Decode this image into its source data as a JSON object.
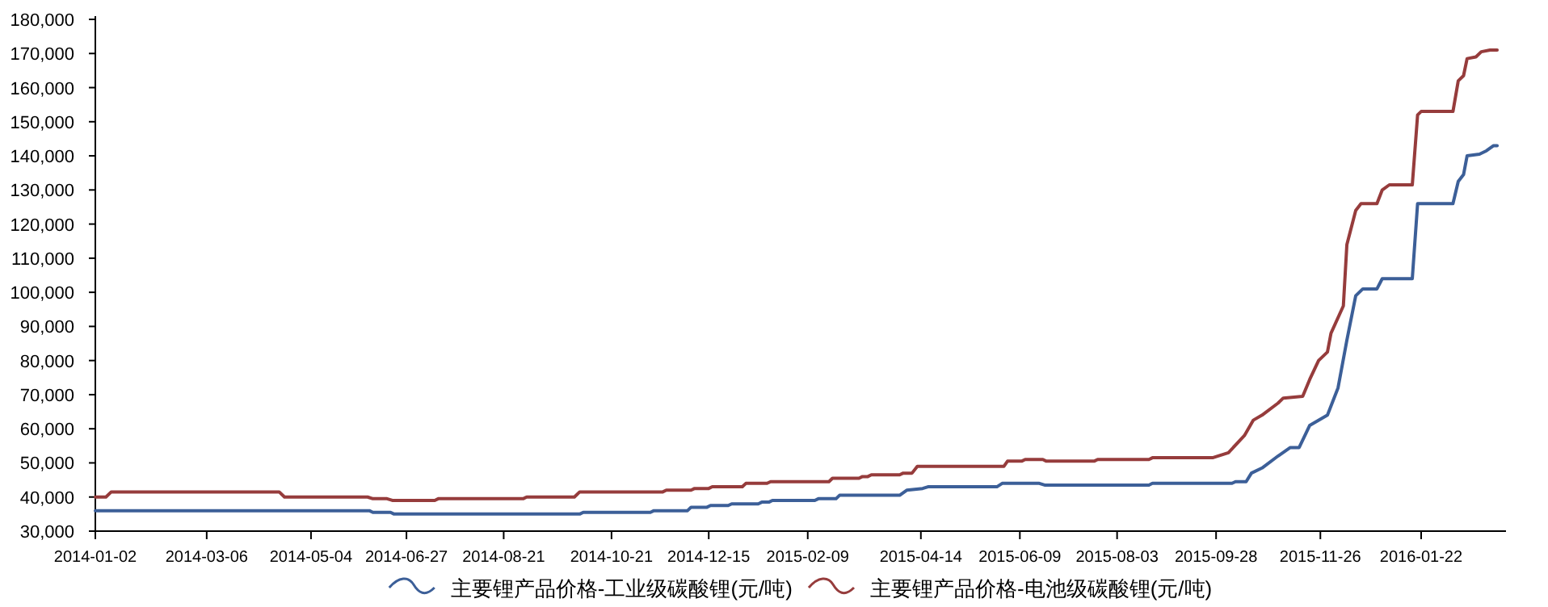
{
  "chart_data": {
    "type": "line",
    "legend": "bottom",
    "xlim": [
      "2014-01-02",
      "2016-03-10"
    ],
    "ylim": [
      30000,
      180000
    ],
    "xticks": [
      {
        "value": "2014-01-02",
        "label": "2014-01-02"
      },
      {
        "value": "2014-03-06",
        "label": "2014-03-06"
      },
      {
        "value": "2014-05-04",
        "label": "2014-05-04"
      },
      {
        "value": "2014-06-27",
        "label": "2014-06-27"
      },
      {
        "value": "2014-08-21",
        "label": "2014-08-21"
      },
      {
        "value": "2014-10-21",
        "label": "2014-10-21"
      },
      {
        "value": "2014-12-15",
        "label": "2014-12-15"
      },
      {
        "value": "2015-02-09",
        "label": "2015-02-09"
      },
      {
        "value": "2015-04-14",
        "label": "2015-04-14"
      },
      {
        "value": "2015-06-09",
        "label": "2015-06-09"
      },
      {
        "value": "2015-08-03",
        "label": "2015-08-03"
      },
      {
        "value": "2015-09-28",
        "label": "2015-09-28"
      },
      {
        "value": "2015-11-26",
        "label": "2015-11-26"
      },
      {
        "value": "2016-01-22",
        "label": "2016-01-22"
      }
    ],
    "yticks": [
      {
        "value": 30000,
        "label": "30,000"
      },
      {
        "value": 40000,
        "label": "40,000"
      },
      {
        "value": 50000,
        "label": "50,000"
      },
      {
        "value": 60000,
        "label": "60,000"
      },
      {
        "value": 70000,
        "label": "70,000"
      },
      {
        "value": 80000,
        "label": "80,000"
      },
      {
        "value": 90000,
        "label": "90,000"
      },
      {
        "value": 100000,
        "label": "100,000"
      },
      {
        "value": 110000,
        "label": "110,000"
      },
      {
        "value": 120000,
        "label": "120,000"
      },
      {
        "value": 130000,
        "label": "130,000"
      },
      {
        "value": 140000,
        "label": "140,000"
      },
      {
        "value": 150000,
        "label": "150,000"
      },
      {
        "value": 160000,
        "label": "160,000"
      },
      {
        "value": 170000,
        "label": "170,000"
      },
      {
        "value": 180000,
        "label": "180,000"
      }
    ],
    "series": [
      {
        "name": "主要锂产品价格-工业级碳酸锂(元/吨)",
        "color": "#3c5f98",
        "x": [
          "2014-01-02",
          "2014-06-06",
          "2014-06-08",
          "2014-06-18",
          "2014-06-20",
          "2014-10-03",
          "2014-10-05",
          "2014-11-12",
          "2014-11-14",
          "2014-12-03",
          "2014-12-05",
          "2014-12-14",
          "2014-12-16",
          "2014-12-26",
          "2014-12-28",
          "2015-01-12",
          "2015-01-14",
          "2015-01-18",
          "2015-01-20",
          "2015-02-13",
          "2015-02-15",
          "2015-02-25",
          "2015-02-27",
          "2015-04-02",
          "2015-04-06",
          "2015-04-15",
          "2015-04-18",
          "2015-05-27",
          "2015-05-30",
          "2015-06-20",
          "2015-06-23",
          "2015-08-21",
          "2015-08-23",
          "2015-10-07",
          "2015-10-09",
          "2015-10-15",
          "2015-10-18",
          "2015-10-24",
          "2015-11-02",
          "2015-11-09",
          "2015-11-14",
          "2015-11-20",
          "2015-11-30",
          "2015-12-06",
          "2015-12-11",
          "2015-12-16",
          "2015-12-20",
          "2015-12-28",
          "2015-12-31",
          "2016-01-17",
          "2016-01-20",
          "2016-02-09",
          "2016-02-12",
          "2016-02-15",
          "2016-02-17",
          "2016-02-24",
          "2016-02-28",
          "2016-03-03",
          "2016-03-05"
        ],
        "values": [
          36000,
          36000,
          35500,
          35500,
          35000,
          35000,
          35500,
          35500,
          36000,
          36000,
          37000,
          37000,
          37500,
          37500,
          38000,
          38000,
          38500,
          38500,
          39000,
          39000,
          39500,
          39500,
          40500,
          40500,
          42000,
          42500,
          43000,
          43000,
          44000,
          44000,
          43500,
          43500,
          44000,
          44000,
          44500,
          44500,
          47000,
          48500,
          52000,
          54500,
          54500,
          61000,
          64000,
          72000,
          86000,
          99000,
          101000,
          101000,
          104000,
          104000,
          126000,
          126000,
          132500,
          134500,
          140000,
          140500,
          141500,
          143000,
          143000
        ]
      },
      {
        "name": "主要锂产品价格-电池级碳酸锂(元/吨)",
        "color": "#963c3c",
        "x": [
          "2014-01-02",
          "2014-01-08",
          "2014-01-11",
          "2014-04-16",
          "2014-04-19",
          "2014-06-05",
          "2014-06-08",
          "2014-06-16",
          "2014-06-19",
          "2014-07-13",
          "2014-07-15",
          "2014-09-01",
          "2014-09-03",
          "2014-09-30",
          "2014-10-03",
          "2014-11-19",
          "2014-11-21",
          "2014-12-05",
          "2014-12-07",
          "2014-12-15",
          "2014-12-17",
          "2015-01-03",
          "2015-01-05",
          "2015-01-17",
          "2015-01-19",
          "2015-02-21",
          "2015-02-23",
          "2015-03-10",
          "2015-03-12",
          "2015-03-15",
          "2015-03-17",
          "2015-04-02",
          "2015-04-04",
          "2015-04-09",
          "2015-04-12",
          "2015-05-31",
          "2015-06-02",
          "2015-06-10",
          "2015-06-12",
          "2015-06-22",
          "2015-06-24",
          "2015-07-21",
          "2015-07-23",
          "2015-08-21",
          "2015-08-23",
          "2015-09-26",
          "2015-10-05",
          "2015-10-14",
          "2015-10-19",
          "2015-10-24",
          "2015-11-02",
          "2015-11-05",
          "2015-11-16",
          "2015-11-20",
          "2015-11-25",
          "2015-11-30",
          "2015-12-02",
          "2015-12-09",
          "2015-12-11",
          "2015-12-16",
          "2015-12-19",
          "2015-12-28",
          "2015-12-31",
          "2016-01-04",
          "2016-01-17",
          "2016-01-20",
          "2016-01-22",
          "2016-02-09",
          "2016-02-12",
          "2016-02-15",
          "2016-02-17",
          "2016-02-22",
          "2016-02-25",
          "2016-03-01",
          "2016-03-05"
        ],
        "values": [
          40000,
          40000,
          41500,
          41500,
          40000,
          40000,
          39500,
          39500,
          39000,
          39000,
          39500,
          39500,
          40000,
          40000,
          41500,
          41500,
          42000,
          42000,
          42500,
          42500,
          43000,
          43000,
          44000,
          44000,
          44500,
          44500,
          45500,
          45500,
          46000,
          46000,
          46500,
          46500,
          47000,
          47000,
          49000,
          49000,
          50500,
          50500,
          51000,
          51000,
          50500,
          50500,
          51000,
          51000,
          51500,
          51500,
          53000,
          58000,
          62500,
          64000,
          67500,
          69000,
          69500,
          74500,
          80000,
          82500,
          88000,
          96000,
          114000,
          124000,
          126000,
          126000,
          130000,
          131500,
          131500,
          152000,
          153000,
          153000,
          162000,
          163500,
          168500,
          169000,
          170500,
          171000,
          171000
        ]
      }
    ]
  }
}
